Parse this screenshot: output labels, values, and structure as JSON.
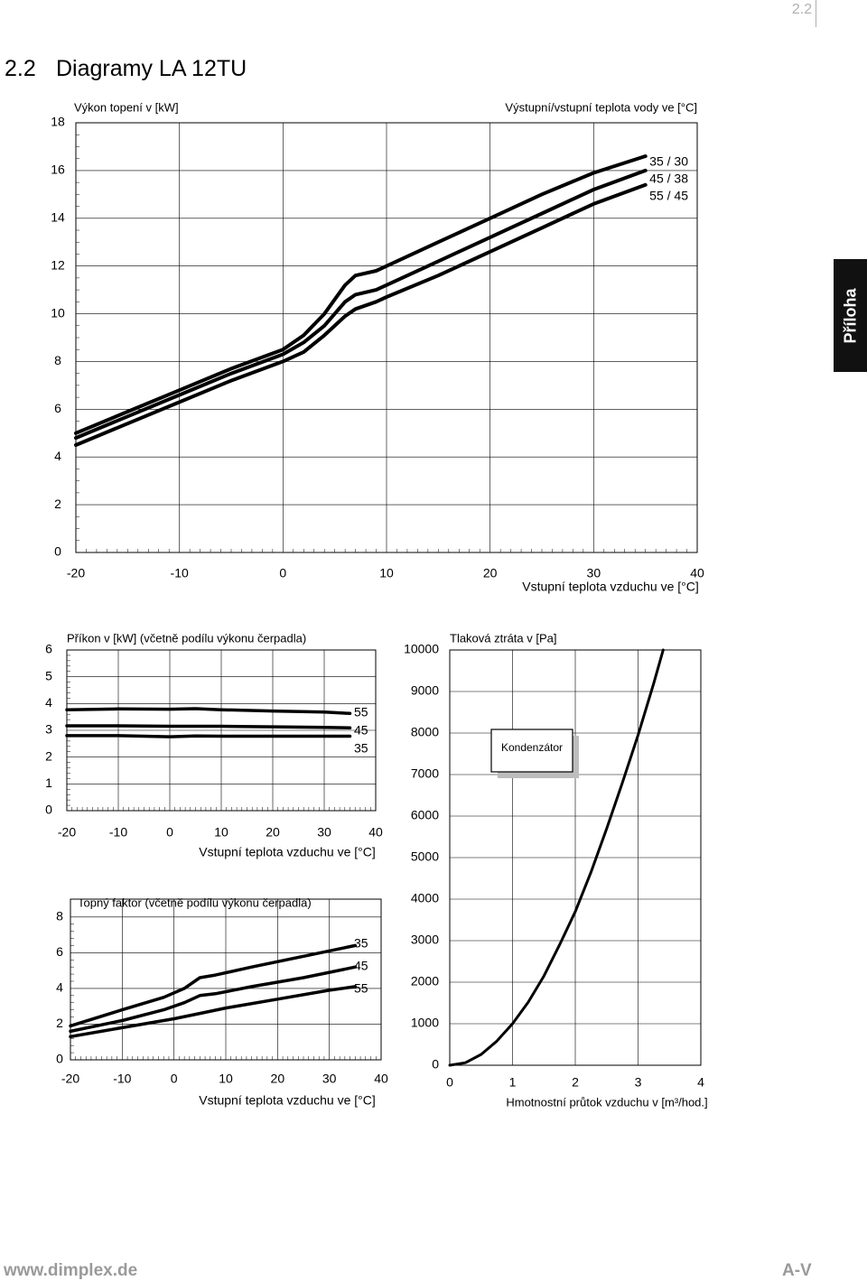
{
  "page": {
    "section_number": "2.2",
    "heading_number": "2.2",
    "heading_title": "Diagramy LA 12TU",
    "side_tab": "Příloha",
    "footer_url": "www.dimplex.de",
    "footer_code": "A-V"
  },
  "chart_data": [
    {
      "id": "heating",
      "type": "line",
      "title": "Výkon topení v [kW]",
      "legend_title": "Výstupní/vstupní teplota vody ve [°C]",
      "xlabel": "Vstupní teplota vzduchu ve [°C]",
      "ylabel": "",
      "xlim": [
        -20,
        40
      ],
      "ylim": [
        0,
        18
      ],
      "x_ticks": [
        -20,
        -10,
        0,
        10,
        20,
        30,
        40
      ],
      "y_ticks": [
        0,
        2,
        4,
        6,
        8,
        10,
        12,
        14,
        16,
        18
      ],
      "grid": true,
      "legend_position": "top-right",
      "series": [
        {
          "name": "35 / 30",
          "points": [
            [
              -20,
              5.0
            ],
            [
              -15,
              5.9
            ],
            [
              -10,
              6.8
            ],
            [
              -5,
              7.7
            ],
            [
              0,
              8.5
            ],
            [
              2,
              9.1
            ],
            [
              4,
              10.0
            ],
            [
              6,
              11.2
            ],
            [
              7,
              11.6
            ],
            [
              9,
              11.8
            ],
            [
              10,
              12.0
            ],
            [
              15,
              13.0
            ],
            [
              20,
              14.0
            ],
            [
              25,
              15.0
            ],
            [
              30,
              15.9
            ],
            [
              35,
              16.6
            ]
          ]
        },
        {
          "name": "45 / 38",
          "points": [
            [
              -20,
              4.8
            ],
            [
              -15,
              5.7
            ],
            [
              -10,
              6.6
            ],
            [
              -5,
              7.5
            ],
            [
              0,
              8.3
            ],
            [
              2,
              8.8
            ],
            [
              4,
              9.5
            ],
            [
              6,
              10.5
            ],
            [
              7,
              10.8
            ],
            [
              9,
              11.0
            ],
            [
              10,
              11.2
            ],
            [
              15,
              12.2
            ],
            [
              20,
              13.2
            ],
            [
              25,
              14.2
            ],
            [
              30,
              15.2
            ],
            [
              35,
              16.0
            ]
          ]
        },
        {
          "name": "55 / 45",
          "points": [
            [
              -20,
              4.5
            ],
            [
              -15,
              5.4
            ],
            [
              -10,
              6.3
            ],
            [
              -5,
              7.2
            ],
            [
              0,
              8.0
            ],
            [
              2,
              8.4
            ],
            [
              4,
              9.1
            ],
            [
              6,
              9.9
            ],
            [
              7,
              10.2
            ],
            [
              9,
              10.5
            ],
            [
              10,
              10.7
            ],
            [
              15,
              11.6
            ],
            [
              20,
              12.6
            ],
            [
              25,
              13.6
            ],
            [
              30,
              14.6
            ],
            [
              35,
              15.4
            ]
          ]
        }
      ]
    },
    {
      "id": "power",
      "type": "line",
      "title": "Příkon v [kW] (včetně podílu výkonu čerpadla)",
      "xlabel": "Vstupní teplota vzduchu ve [°C]",
      "ylabel": "",
      "xlim": [
        -20,
        40
      ],
      "ylim": [
        0,
        6
      ],
      "x_ticks": [
        -20,
        -10,
        0,
        10,
        20,
        30,
        40
      ],
      "y_ticks": [
        0,
        1,
        2,
        3,
        4,
        5,
        6
      ],
      "grid": true,
      "legend_position": "right",
      "series": [
        {
          "name": "55",
          "points": [
            [
              -20,
              3.77
            ],
            [
              -10,
              3.8
            ],
            [
              0,
              3.79
            ],
            [
              5,
              3.81
            ],
            [
              10,
              3.77
            ],
            [
              20,
              3.72
            ],
            [
              30,
              3.68
            ],
            [
              35,
              3.63
            ]
          ]
        },
        {
          "name": "45",
          "points": [
            [
              -20,
              3.17
            ],
            [
              -10,
              3.17
            ],
            [
              0,
              3.15
            ],
            [
              10,
              3.15
            ],
            [
              20,
              3.13
            ],
            [
              30,
              3.11
            ],
            [
              35,
              3.09
            ]
          ]
        },
        {
          "name": "35",
          "points": [
            [
              -20,
              2.8
            ],
            [
              -10,
              2.8
            ],
            [
              0,
              2.76
            ],
            [
              5,
              2.79
            ],
            [
              10,
              2.78
            ],
            [
              20,
              2.78
            ],
            [
              30,
              2.78
            ],
            [
              35,
              2.78
            ]
          ]
        }
      ]
    },
    {
      "id": "pressure",
      "type": "line",
      "title": "Tlaková ztráta v [Pa]",
      "xlabel": "Hmotnostní průtok vzduchu v [m³/hod.]",
      "ylabel": "",
      "xlim": [
        0,
        4
      ],
      "ylim": [
        0,
        10000
      ],
      "x_ticks": [
        0,
        1,
        2,
        3,
        4
      ],
      "y_ticks": [
        0,
        1000,
        2000,
        3000,
        4000,
        5000,
        6000,
        7000,
        8000,
        9000,
        10000
      ],
      "grid": true,
      "annotation": "Kondenzátor",
      "series": [
        {
          "name": "Kondenzátor",
          "points": [
            [
              0,
              0
            ],
            [
              0.25,
              60
            ],
            [
              0.5,
              260
            ],
            [
              0.75,
              580
            ],
            [
              1,
              1000
            ],
            [
              1.25,
              1520
            ],
            [
              1.5,
              2150
            ],
            [
              1.75,
              2900
            ],
            [
              2,
              3700
            ],
            [
              2.25,
              4650
            ],
            [
              2.5,
              5700
            ],
            [
              2.75,
              6800
            ],
            [
              3,
              7950
            ],
            [
              3.25,
              9200
            ],
            [
              3.4,
              10000
            ]
          ]
        }
      ]
    },
    {
      "id": "cop",
      "type": "line",
      "title": "Topný faktor (včetně podílu výkonu čerpadla)",
      "xlabel": "Vstupní teplota vzduchu ve [°C]",
      "ylabel": "",
      "xlim": [
        -20,
        40
      ],
      "ylim": [
        0,
        9
      ],
      "x_ticks": [
        -20,
        -10,
        0,
        10,
        20,
        30,
        40
      ],
      "y_ticks": [
        0,
        2,
        4,
        6,
        8
      ],
      "grid": true,
      "legend_position": "right",
      "series": [
        {
          "name": "35",
          "points": [
            [
              -20,
              1.9
            ],
            [
              -10,
              2.8
            ],
            [
              -2,
              3.5
            ],
            [
              2,
              4.0
            ],
            [
              5,
              4.6
            ],
            [
              8,
              4.75
            ],
            [
              15,
              5.2
            ],
            [
              25,
              5.8
            ],
            [
              35,
              6.4
            ]
          ]
        },
        {
          "name": "45",
          "points": [
            [
              -20,
              1.6
            ],
            [
              -10,
              2.2
            ],
            [
              -2,
              2.8
            ],
            [
              2,
              3.2
            ],
            [
              5,
              3.6
            ],
            [
              8,
              3.7
            ],
            [
              15,
              4.1
            ],
            [
              25,
              4.6
            ],
            [
              35,
              5.2
            ]
          ]
        },
        {
          "name": "55",
          "points": [
            [
              -20,
              1.3
            ],
            [
              -10,
              1.8
            ],
            [
              0,
              2.3
            ],
            [
              5,
              2.6
            ],
            [
              10,
              2.9
            ],
            [
              20,
              3.4
            ],
            [
              30,
              3.9
            ],
            [
              35,
              4.1
            ]
          ]
        }
      ]
    }
  ]
}
